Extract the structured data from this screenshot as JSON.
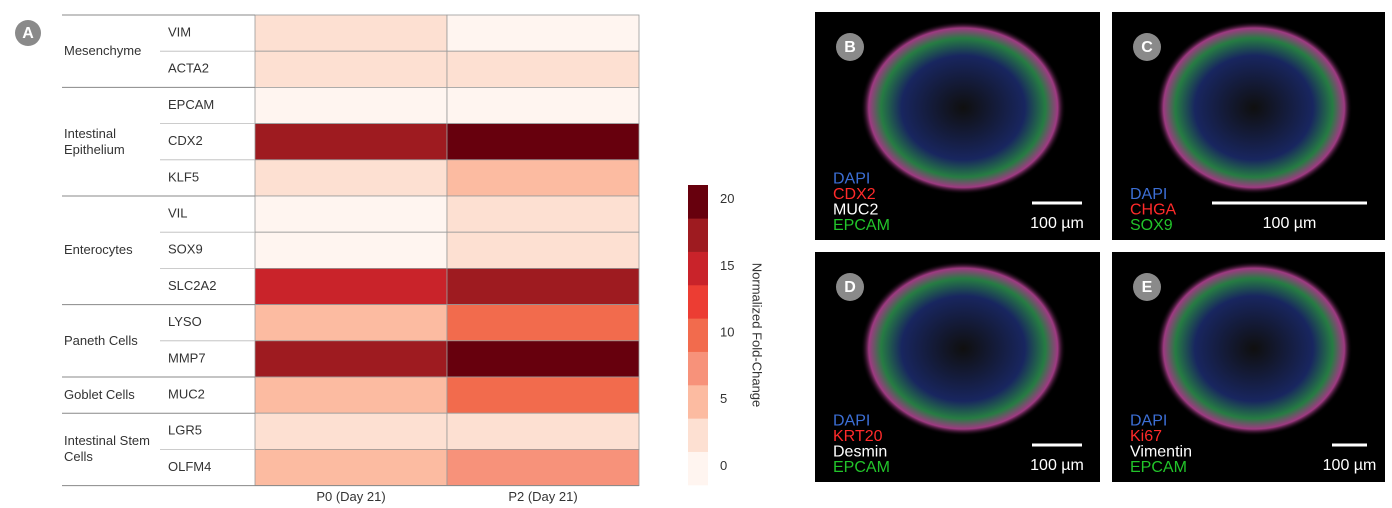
{
  "chart_data": {
    "type": "heatmap",
    "panel_label": "A",
    "columns": [
      "P0 (Day 21)",
      "P2 (Day 21)"
    ],
    "groups": [
      {
        "name": "Mesenchyme",
        "genes": [
          "VIM",
          "ACTA2"
        ],
        "values": [
          [
            3,
            1
          ],
          [
            3,
            3
          ]
        ]
      },
      {
        "name": "Intestinal Epithelium",
        "genes": [
          "EPCAM",
          "CDX2",
          "KLF5"
        ],
        "values": [
          [
            1,
            1
          ],
          [
            17,
            21
          ],
          [
            3,
            6
          ]
        ]
      },
      {
        "name": "Enterocytes",
        "genes": [
          "VIL",
          "SOX9",
          "SLC2A2"
        ],
        "values": [
          [
            1,
            3
          ],
          [
            1,
            3
          ],
          [
            15,
            17
          ]
        ]
      },
      {
        "name": "Paneth Cells",
        "genes": [
          "LYSO",
          "MMP7"
        ],
        "values": [
          [
            6,
            10
          ],
          [
            17,
            21
          ]
        ]
      },
      {
        "name": "Goblet Cells",
        "genes": [
          "MUC2"
        ],
        "values": [
          [
            6,
            10
          ]
        ]
      },
      {
        "name": "Intestinal Stem Cells",
        "genes": [
          "LGR5",
          "OLFM4"
        ],
        "values": [
          [
            3,
            3
          ],
          [
            6,
            8
          ]
        ]
      }
    ],
    "colorbar_label": "Normalized Fold-Change",
    "clim": [
      -1.4,
      21.1
    ],
    "cticks": [
      0,
      5,
      10,
      15,
      20
    ],
    "colors": [
      "#fff5f0",
      "#fde0d2",
      "#fcbba1",
      "#f7927a",
      "#f26b4d",
      "#ec3d33",
      "#c9232a",
      "#9e1b20",
      "#67000d"
    ]
  },
  "images": [
    {
      "label": "B",
      "stains": [
        {
          "name": "DAPI",
          "color": "#3c6fd6"
        },
        {
          "name": "CDX2",
          "color": "#ff2a2a"
        },
        {
          "name": "MUC2",
          "color": "#ffffff"
        },
        {
          "name": "EPCAM",
          "color": "#22c42a"
        }
      ],
      "scale": "100 µm"
    },
    {
      "label": "C",
      "stains": [
        {
          "name": "DAPI",
          "color": "#3c6fd6"
        },
        {
          "name": "CHGA",
          "color": "#ff2a2a"
        },
        {
          "name": "SOX9",
          "color": "#22c42a"
        }
      ],
      "scale": "100 µm"
    },
    {
      "label": "D",
      "stains": [
        {
          "name": "DAPI",
          "color": "#3c6fd6"
        },
        {
          "name": "KRT20",
          "color": "#ff2a2a"
        },
        {
          "name": "Desmin",
          "color": "#ffffff"
        },
        {
          "name": "EPCAM",
          "color": "#22c42a"
        }
      ],
      "scale": "100 µm"
    },
    {
      "label": "E",
      "stains": [
        {
          "name": "DAPI",
          "color": "#3c6fd6"
        },
        {
          "name": "Ki67",
          "color": "#ff2a2a"
        },
        {
          "name": "Vimentin",
          "color": "#ffffff"
        },
        {
          "name": "EPCAM",
          "color": "#22c42a"
        }
      ],
      "scale": "100 µm"
    }
  ]
}
